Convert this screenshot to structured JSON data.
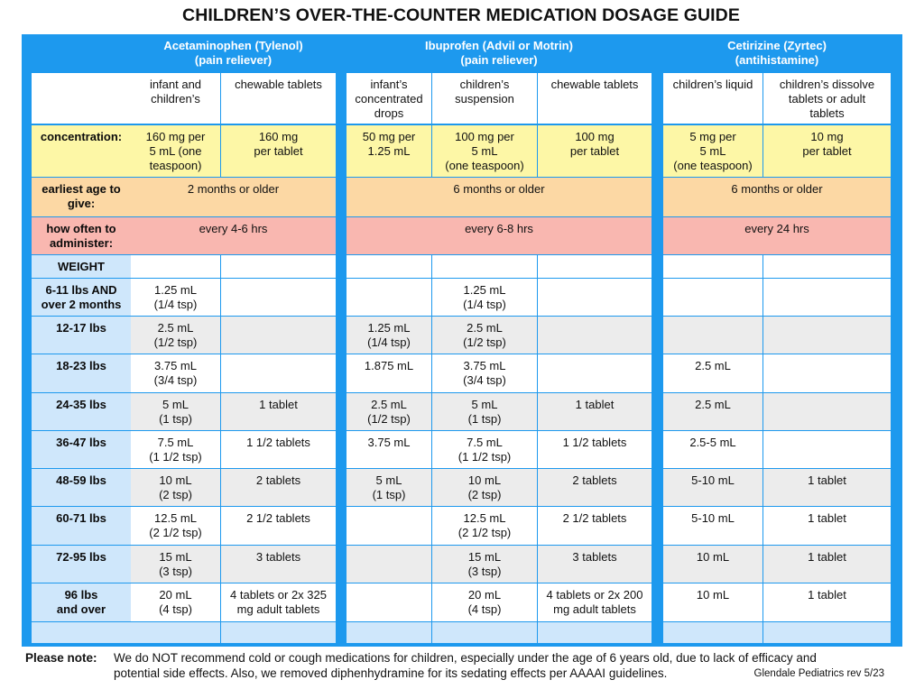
{
  "title": "CHILDREN’S OVER-THE-COUNTER MEDICATION DOSAGE GUIDE",
  "colors": {
    "frame_blue": "#1d99ee",
    "yellow": "#fdf7a6",
    "orange": "#fcd8a4",
    "pink": "#f9b7b0",
    "label_blue": "#cfe7fb",
    "row_gray": "#ececec",
    "white": "#ffffff"
  },
  "groups": [
    {
      "name": "Acetaminophen (Tylenol)",
      "type": "(pain reliever)"
    },
    {
      "name": "Ibuprofen (Advil or Motrin)",
      "type": "(pain reliever)"
    },
    {
      "name": "Cetirizine (Zyrtec)",
      "type": "(antihistamine)"
    }
  ],
  "forms": [
    [
      "infant and",
      "children’s"
    ],
    [
      "chewable tablets"
    ],
    [
      "infant’s",
      "concentrated",
      "drops"
    ],
    [
      "children’s",
      "suspension"
    ],
    [
      "chewable tablets"
    ],
    [
      "children’s liquid"
    ],
    [
      "children’s dissolve",
      "tablets or adult",
      "tablets"
    ]
  ],
  "concentration": {
    "label": "concentration:",
    "values": [
      [
        "160 mg per",
        "5 mL (one",
        "teaspoon)"
      ],
      [
        "160 mg",
        "per tablet"
      ],
      [
        "50 mg per",
        "1.25 mL"
      ],
      [
        "100 mg per",
        "5 mL",
        "(one teaspoon)"
      ],
      [
        "100 mg",
        "per tablet"
      ],
      [
        "5 mg per",
        "5 mL",
        "(one teaspoon)"
      ],
      [
        "10 mg",
        "per tablet"
      ]
    ]
  },
  "earliest_age": {
    "label": [
      "earliest age to",
      "give:"
    ],
    "values": [
      "2 months or older",
      "6 months or older",
      "6 months or older"
    ]
  },
  "how_often": {
    "label": [
      "how often to",
      "administer:"
    ],
    "values": [
      "every 4-6 hrs",
      "every 6-8 hrs",
      "every 24 hrs"
    ]
  },
  "weight_header": "WEIGHT",
  "weight_rows": [
    {
      "label": [
        "6-11 lbs AND",
        "over 2 months"
      ],
      "doses": [
        [
          "1.25 mL",
          "(1/4 tsp)"
        ],
        [],
        [],
        [
          "1.25 mL",
          "(1/4 tsp)"
        ],
        [],
        [],
        []
      ]
    },
    {
      "label": [
        "12-17 lbs"
      ],
      "doses": [
        [
          "2.5 mL",
          "(1/2 tsp)"
        ],
        [],
        [
          "1.25 mL",
          "(1/4 tsp)"
        ],
        [
          "2.5 mL",
          "(1/2 tsp)"
        ],
        [],
        [],
        []
      ]
    },
    {
      "label": [
        "18-23 lbs"
      ],
      "doses": [
        [
          "3.75 mL",
          "(3/4 tsp)"
        ],
        [],
        [
          "1.875 mL"
        ],
        [
          "3.75 mL",
          "(3/4 tsp)"
        ],
        [],
        [
          "2.5 mL"
        ],
        []
      ]
    },
    {
      "label": [
        "24-35 lbs"
      ],
      "doses": [
        [
          "5 mL",
          "(1 tsp)"
        ],
        [
          "1 tablet"
        ],
        [
          "2.5 mL",
          "(1/2 tsp)"
        ],
        [
          "5 mL",
          "(1 tsp)"
        ],
        [
          "1 tablet"
        ],
        [
          "2.5 mL"
        ],
        []
      ]
    },
    {
      "label": [
        "36-47 lbs"
      ],
      "doses": [
        [
          "7.5 mL",
          "(1 1/2 tsp)"
        ],
        [
          "1 1/2 tablets"
        ],
        [
          "3.75 mL"
        ],
        [
          "7.5 mL",
          "(1 1/2 tsp)"
        ],
        [
          "1 1/2 tablets"
        ],
        [
          "2.5-5 mL"
        ],
        []
      ]
    },
    {
      "label": [
        "48-59 lbs"
      ],
      "doses": [
        [
          "10 mL",
          "(2 tsp)"
        ],
        [
          "2 tablets"
        ],
        [
          "5 mL",
          "(1 tsp)"
        ],
        [
          "10 mL",
          "(2 tsp)"
        ],
        [
          "2 tablets"
        ],
        [
          "5-10 mL"
        ],
        [
          "1 tablet"
        ]
      ]
    },
    {
      "label": [
        "60-71 lbs"
      ],
      "doses": [
        [
          "12.5 mL",
          "(2 1/2 tsp)"
        ],
        [
          "2 1/2 tablets"
        ],
        [],
        [
          "12.5 mL",
          "(2 1/2 tsp)"
        ],
        [
          "2 1/2 tablets"
        ],
        [
          "5-10 mL"
        ],
        [
          "1 tablet"
        ]
      ]
    },
    {
      "label": [
        "72-95 lbs"
      ],
      "doses": [
        [
          "15 mL",
          "(3 tsp)"
        ],
        [
          "3 tablets"
        ],
        [],
        [
          "15 mL",
          "(3 tsp)"
        ],
        [
          "3 tablets"
        ],
        [
          "10 mL"
        ],
        [
          "1 tablet"
        ]
      ]
    },
    {
      "label": [
        "96 lbs",
        "and over"
      ],
      "doses": [
        [
          "20 mL",
          "(4 tsp)"
        ],
        [
          "4 tablets or 2x 325",
          "mg adult tablets"
        ],
        [],
        [
          "20 mL",
          "(4 tsp)"
        ],
        [
          "4 tablets or 2x 200",
          "mg adult tablets"
        ],
        [
          "10 mL"
        ],
        [
          "1 tablet"
        ]
      ]
    }
  ],
  "note": {
    "label": "Please note:",
    "line1": "We do NOT recommend cold or cough medications for children, especially under the age of 6 years old, due to lack of efficacy and",
    "line2": "potential side effects. Also, we removed diphenhydramine for its sedating effects per AAAAI guidelines."
  },
  "credit": "Glendale Pediatrics rev 5/23"
}
